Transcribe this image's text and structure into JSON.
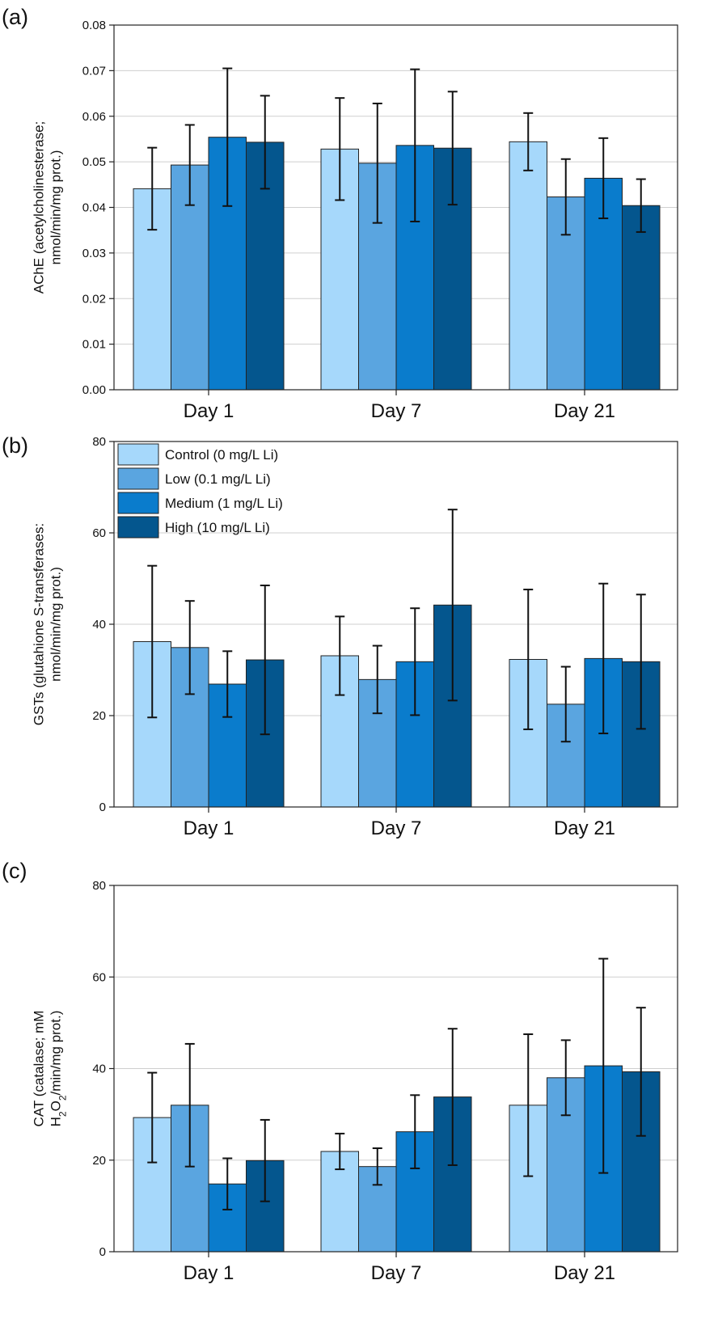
{
  "series_styles": [
    {
      "name": "Control (0 mg/L Li)",
      "color": "#a6d8fb"
    },
    {
      "name": "Low (0.1 mg/L Li)",
      "color": "#5aa5e0"
    },
    {
      "name": "Medium (1 mg/L Li)",
      "color": "#0a7ccc"
    },
    {
      "name": "High (10 mg/L Li)",
      "color": "#04568e"
    }
  ],
  "chart_data": [
    {
      "panel": "(a)",
      "type": "bar",
      "ylabel_lines": [
        "AChE (acetylcholinesterase;",
        "nmol/min/mg prot.)"
      ],
      "ylim": [
        0,
        0.08
      ],
      "yticks": [
        "0.00",
        "0.01",
        "0.02",
        "0.03",
        "0.04",
        "0.05",
        "0.06",
        "0.07",
        "0.08"
      ],
      "ytick_values": [
        0,
        0.01,
        0.02,
        0.03,
        0.04,
        0.05,
        0.06,
        0.07,
        0.08
      ],
      "categories": [
        "Day 1",
        "Day 7",
        "Day 21"
      ],
      "grid": true,
      "legend": false,
      "series": [
        {
          "name": "Control (0 mg/L Li)",
          "values": [
            0.0441,
            0.0528,
            0.0544
          ],
          "errors": [
            0.009,
            0.0112,
            0.0063
          ]
        },
        {
          "name": "Low (0.1 mg/L Li)",
          "values": [
            0.0493,
            0.0497,
            0.0423
          ],
          "errors": [
            0.0088,
            0.0131,
            0.0083
          ]
        },
        {
          "name": "Medium (1 mg/L Li)",
          "values": [
            0.0554,
            0.0536,
            0.0464
          ],
          "errors": [
            0.0151,
            0.0167,
            0.0088
          ]
        },
        {
          "name": "High (10 mg/L Li)",
          "values": [
            0.0543,
            0.053,
            0.0404
          ],
          "errors": [
            0.0102,
            0.0124,
            0.0058
          ]
        }
      ]
    },
    {
      "panel": "(b)",
      "type": "bar",
      "ylabel_lines": [
        "GSTs (glutahione S-transferases:",
        "nmol/min/mg prot.)"
      ],
      "ylim": [
        0,
        80
      ],
      "yticks": [
        "0",
        "20",
        "40",
        "60",
        "80"
      ],
      "ytick_values": [
        0,
        20,
        40,
        60,
        80
      ],
      "categories": [
        "Day 1",
        "Day 7",
        "Day 21"
      ],
      "grid": true,
      "legend": true,
      "legend_position": "top-left",
      "series": [
        {
          "name": "Control (0 mg/L Li)",
          "values": [
            36.2,
            33.1,
            32.3
          ],
          "errors": [
            16.6,
            8.6,
            15.3
          ]
        },
        {
          "name": "Low (0.1 mg/L Li)",
          "values": [
            34.9,
            27.9,
            22.5
          ],
          "errors": [
            10.2,
            7.4,
            8.2
          ]
        },
        {
          "name": "Medium (1 mg/L Li)",
          "values": [
            26.9,
            31.8,
            32.5
          ],
          "errors": [
            7.2,
            11.7,
            16.4
          ]
        },
        {
          "name": "High (10 mg/L Li)",
          "values": [
            32.2,
            44.2,
            31.8
          ],
          "errors": [
            16.3,
            20.9,
            14.7
          ]
        }
      ]
    },
    {
      "panel": "(c)",
      "type": "bar",
      "ylabel_lines": [
        "CAT (catalase; mM"
      ],
      "ylabel_chem": {
        "prefix": "H",
        "sub1": "2",
        "mid": "O",
        "sub2": "2",
        "suffix": "/min/mg prot.)"
      },
      "ylim": [
        0,
        80
      ],
      "yticks": [
        "0",
        "20",
        "40",
        "60",
        "80"
      ],
      "ytick_values": [
        0,
        20,
        40,
        60,
        80
      ],
      "categories": [
        "Day 1",
        "Day 7",
        "Day 21"
      ],
      "grid": true,
      "legend": false,
      "series": [
        {
          "name": "Control (0 mg/L Li)",
          "values": [
            29.3,
            21.9,
            32.0
          ],
          "errors": [
            9.8,
            3.9,
            15.5
          ]
        },
        {
          "name": "Low (0.1 mg/L Li)",
          "values": [
            32.0,
            18.6,
            38.0
          ],
          "errors": [
            13.4,
            4.0,
            8.2
          ]
        },
        {
          "name": "Medium (1 mg/L Li)",
          "values": [
            14.8,
            26.2,
            40.6
          ],
          "errors": [
            5.6,
            8.0,
            23.4
          ]
        },
        {
          "name": "High (10 mg/L Li)",
          "values": [
            19.9,
            33.8,
            39.3
          ],
          "errors": [
            8.9,
            14.9,
            14.0
          ]
        }
      ]
    }
  ]
}
